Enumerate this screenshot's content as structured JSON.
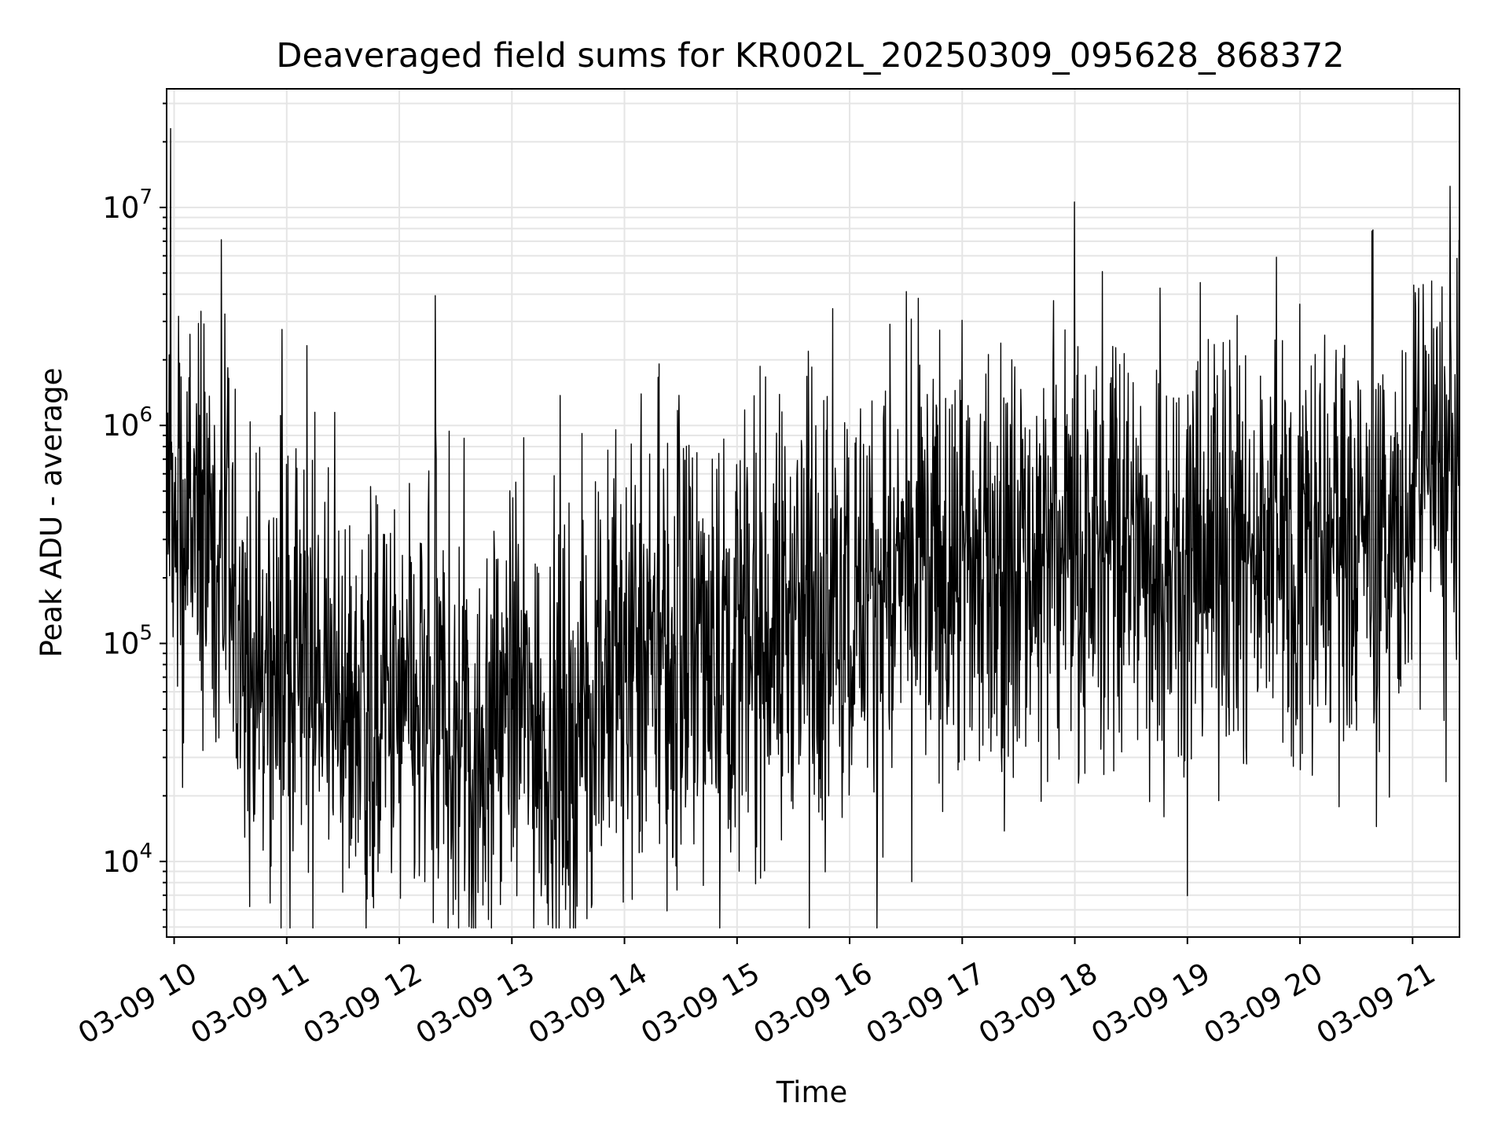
{
  "chart_data": {
    "type": "line",
    "title": "Deaveraged field sums for KR002L_20250309_095628_868372",
    "xlabel": "Time",
    "ylabel": "Peak ADU - average",
    "yscale": "log",
    "ylim": [
      4500,
      35000000
    ],
    "xlim": [
      "2025-03-09 09:56",
      "2025-03-09 21:25"
    ],
    "grid": true,
    "legend": "none",
    "line_color": "#000000",
    "x_ticks": [
      {
        "value": "2025-03-09 10:00",
        "label": "03-09 10"
      },
      {
        "value": "2025-03-09 11:00",
        "label": "03-09 11"
      },
      {
        "value": "2025-03-09 12:00",
        "label": "03-09 12"
      },
      {
        "value": "2025-03-09 13:00",
        "label": "03-09 13"
      },
      {
        "value": "2025-03-09 14:00",
        "label": "03-09 14"
      },
      {
        "value": "2025-03-09 15:00",
        "label": "03-09 15"
      },
      {
        "value": "2025-03-09 16:00",
        "label": "03-09 16"
      },
      {
        "value": "2025-03-09 17:00",
        "label": "03-09 17"
      },
      {
        "value": "2025-03-09 18:00",
        "label": "03-09 18"
      },
      {
        "value": "2025-03-09 19:00",
        "label": "03-09 19"
      },
      {
        "value": "2025-03-09 20:00",
        "label": "03-09 20"
      },
      {
        "value": "2025-03-09 21:00",
        "label": "03-09 21"
      }
    ],
    "y_ticks": [
      {
        "value": 10000,
        "base": "10",
        "exp": "4"
      },
      {
        "value": 100000,
        "base": "10",
        "exp": "5"
      },
      {
        "value": 1000000,
        "base": "10",
        "exp": "6"
      },
      {
        "value": 10000000,
        "base": "10",
        "exp": "7"
      }
    ],
    "x": [
      "2025-03-09 09:56",
      "2025-03-09 10:05",
      "2025-03-09 10:15",
      "2025-03-09 10:25",
      "2025-03-09 10:30",
      "2025-03-09 10:35",
      "2025-03-09 10:45",
      "2025-03-09 11:00",
      "2025-03-09 11:15",
      "2025-03-09 11:30",
      "2025-03-09 11:45",
      "2025-03-09 12:00",
      "2025-03-09 12:15",
      "2025-03-09 12:30",
      "2025-03-09 12:40",
      "2025-03-09 12:50",
      "2025-03-09 13:00",
      "2025-03-09 13:15",
      "2025-03-09 13:25",
      "2025-03-09 13:35",
      "2025-03-09 13:45",
      "2025-03-09 14:00",
      "2025-03-09 14:30",
      "2025-03-09 15:00",
      "2025-03-09 15:30",
      "2025-03-09 16:00",
      "2025-03-09 16:30",
      "2025-03-09 17:00",
      "2025-03-09 17:30",
      "2025-03-09 18:00",
      "2025-03-09 18:30",
      "2025-03-09 19:00",
      "2025-03-09 19:30",
      "2025-03-09 20:00",
      "2025-03-09 20:30",
      "2025-03-09 20:50",
      "2025-03-09 21:00",
      "2025-03-09 21:10",
      "2025-03-09 21:25"
    ],
    "series": [
      {
        "values": [
          500000,
          300000,
          300000,
          250000,
          150000,
          80000,
          70000,
          80000,
          70000,
          60000,
          50000,
          45000,
          45000,
          40000,
          30000,
          45000,
          60000,
          40000,
          35000,
          40000,
          60000,
          75000,
          90000,
          110000,
          140000,
          160000,
          190000,
          220000,
          250000,
          260000,
          270000,
          260000,
          270000,
          280000,
          300000,
          280000,
          500000,
          550000,
          600000
        ],
        "noise": 0.5
      }
    ],
    "spikes": [
      {
        "x": "2025-03-09 09:58",
        "y": 23000000
      },
      {
        "x": "2025-03-09 11:15",
        "y": 1150000
      },
      {
        "x": "2025-03-09 20:00",
        "y": 3600000
      },
      {
        "x": "2025-03-09 21:20",
        "y": 12500000
      },
      {
        "x": "2025-03-09 12:30",
        "y": 6700
      },
      {
        "x": "2025-03-09 12:42",
        "y": 7200
      },
      {
        "x": "2025-03-09 10:05",
        "y": 35000
      },
      {
        "x": "2025-03-09 10:40",
        "y": 17000
      },
      {
        "x": "2025-03-09 13:30",
        "y": 11000
      },
      {
        "x": "2025-03-09 16:45",
        "y": 800000
      },
      {
        "x": "2025-03-09 19:45",
        "y": 1000000
      },
      {
        "x": "2025-03-09 20:30",
        "y": 40000
      }
    ]
  }
}
